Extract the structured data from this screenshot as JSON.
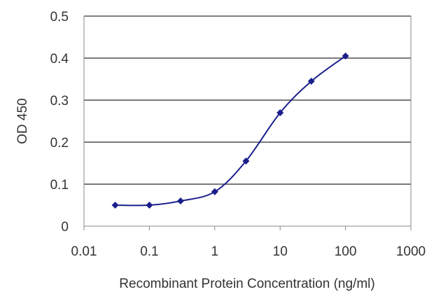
{
  "chart_data": {
    "type": "line",
    "title": "",
    "xlabel": "Recombinant Protein Concentration (ng/ml)",
    "ylabel": "OD 450",
    "x_scale": "log",
    "xlim": [
      0.01,
      1000
    ],
    "ylim": [
      0,
      0.5
    ],
    "x_ticks": [
      "0.01",
      "0.1",
      "1",
      "10",
      "100",
      "1000"
    ],
    "y_ticks": [
      "0",
      "0.1",
      "0.2",
      "0.3",
      "0.4",
      "0.5"
    ],
    "grid": "horizontal",
    "legend": "none",
    "series": [
      {
        "color": "#1a1f8c",
        "marker": "diamond",
        "x": [
          0.03,
          0.1,
          0.3,
          1,
          3,
          10,
          30,
          100
        ],
        "y": [
          0.05,
          0.05,
          0.06,
          0.082,
          0.155,
          0.27,
          0.345,
          0.405
        ]
      }
    ]
  }
}
